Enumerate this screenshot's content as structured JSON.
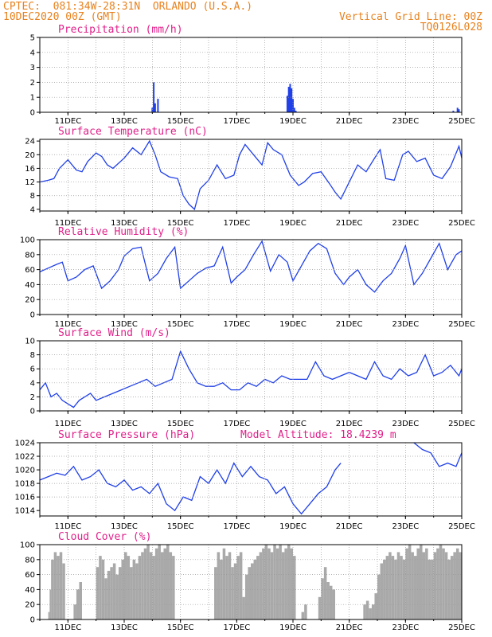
{
  "header": {
    "line1_left": "CPTEC:  081:34W-28:31N  ORLANDO (U.S.A.)",
    "line2_left": "10DEC2020 00Z (GMT)",
    "line2_right": "Vertical Grid Line: 00Z",
    "line3_right": "TQ0126L028"
  },
  "colors": {
    "header": "#e8821e",
    "title": "#e0208a",
    "line": "#2040e8",
    "cloud": "#a9a9a9",
    "grid": "#9a9a9a"
  },
  "chart_data": [
    {
      "type": "bar",
      "title": "Precipitation (mm/h)",
      "ylim": [
        0,
        5
      ],
      "yticks": [
        "0",
        "1",
        "2",
        "3",
        "4",
        "5"
      ],
      "xticks": [
        "11DEC",
        "13DEC",
        "15DEC",
        "17DEC",
        "19DEC",
        "21DEC",
        "23DEC",
        "25DEC"
      ],
      "x": [
        14.0,
        14.05,
        14.1,
        14.2,
        18.8,
        18.85,
        18.9,
        18.95,
        19.0,
        19.05,
        19.1,
        24.7,
        24.85,
        24.9
      ],
      "values": [
        0.3,
        2.0,
        0.6,
        0.9,
        1.1,
        1.7,
        1.9,
        1.6,
        0.9,
        0.3,
        0.1,
        0.1,
        0.3,
        0.2
      ]
    },
    {
      "type": "line",
      "title": "Surface Temperature (nC)",
      "ylim": [
        3.5,
        24.5
      ],
      "yticks": [
        "4",
        "8",
        "12",
        "16",
        "20",
        "24"
      ],
      "xticks": [
        "11DEC",
        "13DEC",
        "15DEC",
        "17DEC",
        "19DEC",
        "21DEC",
        "23DEC",
        "25DEC"
      ],
      "x": [
        10.0,
        10.3,
        10.5,
        10.7,
        11.0,
        11.3,
        11.5,
        11.7,
        12.0,
        12.2,
        12.4,
        12.6,
        13.0,
        13.3,
        13.6,
        13.9,
        14.1,
        14.3,
        14.6,
        14.9,
        15.1,
        15.3,
        15.5,
        15.7,
        16.0,
        16.3,
        16.6,
        16.9,
        17.1,
        17.3,
        17.6,
        17.9,
        18.1,
        18.3,
        18.6,
        18.9,
        19.2,
        19.4,
        19.7,
        20.0,
        20.3,
        20.5,
        20.7,
        21.0,
        21.3,
        21.6,
        21.9,
        22.1,
        22.3,
        22.6,
        22.9,
        23.1,
        23.4,
        23.7,
        24.0,
        24.3,
        24.6,
        24.9,
        25.0
      ],
      "values": [
        12,
        12.5,
        13,
        16,
        18.5,
        15.5,
        15,
        18,
        20.5,
        19.5,
        17,
        16,
        19,
        22,
        20,
        24,
        20,
        15,
        13.5,
        13,
        8,
        5.5,
        4,
        10,
        12.5,
        17,
        13,
        14,
        20,
        23,
        20,
        17,
        23.5,
        21.5,
        20,
        14,
        11,
        12,
        14.5,
        15,
        11.5,
        9,
        7,
        12,
        17,
        15,
        19,
        21.5,
        13,
        12.5,
        20,
        21,
        18,
        19,
        14,
        13,
        16.5,
        22.5,
        19
      ]
    },
    {
      "type": "line",
      "title": "Relative Humidity (%)",
      "ylim": [
        0,
        100
      ],
      "yticks": [
        "0",
        "20",
        "40",
        "60",
        "80",
        "100"
      ],
      "xticks": [
        "11DEC",
        "13DEC",
        "15DEC",
        "17DEC",
        "19DEC",
        "21DEC",
        "23DEC",
        "25DEC"
      ],
      "x": [
        10.0,
        10.3,
        10.6,
        10.8,
        11.0,
        11.3,
        11.6,
        11.9,
        12.2,
        12.5,
        12.8,
        13.0,
        13.3,
        13.6,
        13.9,
        14.2,
        14.5,
        14.8,
        15.0,
        15.3,
        15.6,
        15.9,
        16.2,
        16.5,
        16.8,
        17.0,
        17.3,
        17.6,
        17.9,
        18.2,
        18.5,
        18.8,
        19.0,
        19.3,
        19.6,
        19.9,
        20.2,
        20.5,
        20.8,
        21.0,
        21.3,
        21.6,
        21.9,
        22.2,
        22.5,
        22.8,
        23.0,
        23.3,
        23.6,
        23.9,
        24.2,
        24.5,
        24.8,
        25.0
      ],
      "values": [
        57,
        62,
        67,
        70,
        45,
        50,
        60,
        65,
        35,
        45,
        60,
        78,
        88,
        90,
        45,
        55,
        75,
        90,
        35,
        45,
        55,
        62,
        65,
        90,
        42,
        50,
        60,
        80,
        98,
        58,
        80,
        70,
        45,
        65,
        85,
        95,
        88,
        55,
        40,
        50,
        60,
        40,
        30,
        45,
        55,
        75,
        92,
        40,
        55,
        75,
        95,
        60,
        80,
        85
      ]
    },
    {
      "type": "line",
      "title": "Surface Wind (m/s)",
      "ylim": [
        0,
        10
      ],
      "yticks": [
        "0",
        "2",
        "4",
        "6",
        "8",
        "10"
      ],
      "xticks": [
        "11DEC",
        "13DEC",
        "15DEC",
        "17DEC",
        "19DEC",
        "21DEC",
        "23DEC",
        "25DEC"
      ],
      "x": [
        10.0,
        10.2,
        10.4,
        10.6,
        10.8,
        11.0,
        11.2,
        11.4,
        11.6,
        11.8,
        12.0,
        12.3,
        12.6,
        12.9,
        13.2,
        13.5,
        13.8,
        14.1,
        14.4,
        14.7,
        15.0,
        15.3,
        15.6,
        15.9,
        16.2,
        16.5,
        16.8,
        17.1,
        17.4,
        17.7,
        18.0,
        18.3,
        18.6,
        18.9,
        19.2,
        19.5,
        19.8,
        20.1,
        20.4,
        20.7,
        21.0,
        21.3,
        21.6,
        21.9,
        22.2,
        22.5,
        22.8,
        23.1,
        23.4,
        23.7,
        24.0,
        24.3,
        24.6,
        24.9,
        25.0
      ],
      "values": [
        3,
        4,
        2,
        2.5,
        1.5,
        1,
        0.5,
        1.5,
        2,
        2.5,
        1.5,
        2,
        2.5,
        3,
        3.5,
        4,
        4.5,
        3.5,
        4,
        4.5,
        8.5,
        6,
        4,
        3.5,
        3.5,
        4,
        3,
        3,
        4,
        3.5,
        4.5,
        4,
        5,
        4.5,
        4.5,
        4.5,
        7,
        5,
        4.5,
        5,
        5.5,
        5,
        4.5,
        7,
        5,
        4.5,
        6,
        5,
        5.5,
        8,
        5,
        5.5,
        6.5,
        5,
        6
      ]
    },
    {
      "type": "line",
      "title": "Surface Pressure (hPa)",
      "annotation": "Model Altitude: 18.4239 m",
      "ylim": [
        1013.2,
        1024
      ],
      "yticks": [
        "1014",
        "1016",
        "1018",
        "1020",
        "1022",
        "1024"
      ],
      "xticks": [
        "11DEC",
        "13DEC",
        "15DEC",
        "17DEC",
        "19DEC",
        "21DEC",
        "23DEC",
        "25DEC"
      ],
      "x": [
        10.0,
        10.3,
        10.6,
        10.9,
        11.2,
        11.5,
        11.8,
        12.1,
        12.4,
        12.7,
        13.0,
        13.3,
        13.6,
        13.9,
        14.2,
        14.5,
        14.8,
        15.1,
        15.4,
        15.7,
        16.0,
        16.3,
        16.6,
        16.9,
        17.2,
        17.5,
        17.8,
        18.1,
        18.4,
        18.7,
        19.0,
        19.3,
        19.6,
        19.9,
        20.2,
        20.5,
        20.7,
        23.3,
        23.6,
        23.9,
        24.2,
        24.5,
        24.8,
        25.0
      ],
      "values": [
        1018.5,
        1019,
        1019.5,
        1019.2,
        1020.5,
        1018.5,
        1019,
        1020,
        1018,
        1017.5,
        1018.5,
        1017,
        1017.5,
        1016.5,
        1018,
        1015,
        1014,
        1016,
        1015.5,
        1019,
        1018,
        1020,
        1018,
        1021,
        1019,
        1020.5,
        1019,
        1018.5,
        1016.5,
        1017.5,
        1015,
        1013.5,
        1015,
        1016.5,
        1017.5,
        1020,
        1021,
        1024,
        1023,
        1022.5,
        1020.5,
        1021,
        1020.5,
        1022.5
      ]
    },
    {
      "type": "bar",
      "title": "Cloud Cover (%)",
      "ylim": [
        0,
        100
      ],
      "yticks": [
        "0",
        "20",
        "40",
        "60",
        "80",
        "100"
      ],
      "xticks": [
        "11DEC",
        "13DEC",
        "15DEC",
        "17DEC",
        "19DEC",
        "21DEC",
        "23DEC",
        "25DEC"
      ],
      "segments": [
        {
          "start": 10.3,
          "end": 10.4,
          "values": [
            10,
            40
          ]
        },
        {
          "start": 10.4,
          "end": 10.9,
          "values": [
            80,
            90,
            85,
            90,
            75
          ]
        },
        {
          "start": 11.2,
          "end": 11.5,
          "values": [
            20,
            40,
            50
          ]
        },
        {
          "start": 12.0,
          "end": 12.8,
          "values": [
            70,
            85,
            80,
            55,
            65,
            70,
            75,
            60
          ]
        },
        {
          "start": 12.8,
          "end": 13.7,
          "values": [
            70,
            80,
            90,
            85,
            70,
            80,
            75,
            85,
            90
          ]
        },
        {
          "start": 13.7,
          "end": 14.8,
          "values": [
            95,
            100,
            90,
            85,
            95,
            100,
            90,
            95,
            100,
            90,
            85
          ]
        },
        {
          "start": 16.2,
          "end": 17.2,
          "values": [
            70,
            90,
            80,
            95,
            85,
            90,
            70,
            75,
            85,
            90
          ]
        },
        {
          "start": 17.2,
          "end": 17.9,
          "values": [
            30,
            60,
            70,
            75,
            80,
            85,
            90
          ]
        },
        {
          "start": 17.9,
          "end": 19.1,
          "values": [
            95,
            100,
            95,
            90,
            100,
            95,
            100,
            90,
            95,
            100,
            95,
            85
          ]
        },
        {
          "start": 19.3,
          "end": 19.5,
          "values": [
            10,
            20
          ]
        },
        {
          "start": 19.9,
          "end": 20.5,
          "values": [
            30,
            55,
            70,
            50,
            45,
            40
          ]
        },
        {
          "start": 21.5,
          "end": 21.9,
          "values": [
            20,
            25,
            15,
            20
          ]
        },
        {
          "start": 21.9,
          "end": 22.9,
          "values": [
            35,
            60,
            75,
            80,
            85,
            90,
            85,
            80,
            90,
            85
          ]
        },
        {
          "start": 22.9,
          "end": 23.9,
          "values": [
            80,
            95,
            100,
            90,
            85,
            95,
            100,
            90,
            95,
            80
          ]
        },
        {
          "start": 23.9,
          "end": 24.7,
          "values": [
            80,
            90,
            95,
            100,
            95,
            90,
            80,
            85
          ]
        },
        {
          "start": 24.7,
          "end": 25.0,
          "values": [
            90,
            95,
            90
          ]
        }
      ]
    }
  ]
}
